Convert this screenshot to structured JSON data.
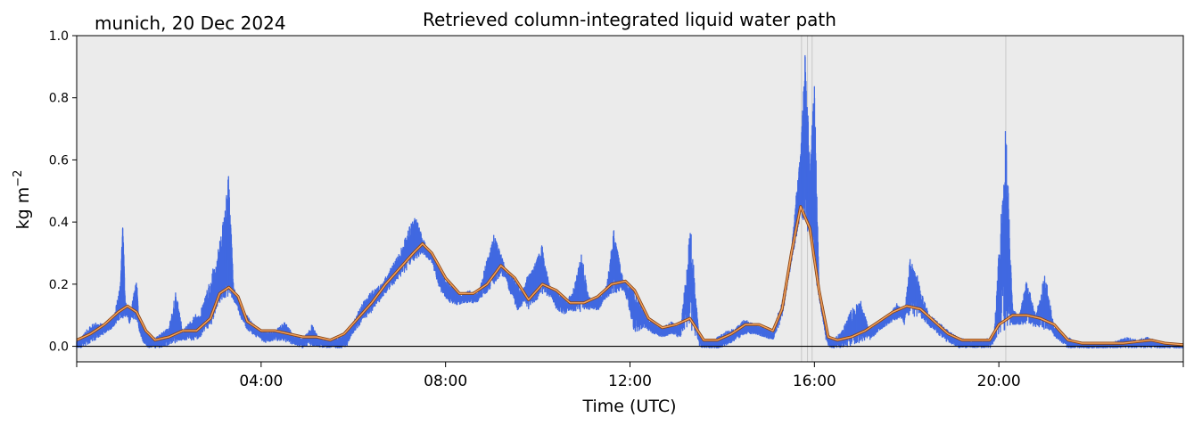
{
  "chart_data": {
    "type": "line",
    "title": "Retrieved column-integrated liquid water path",
    "subtitle": "munich, 20 Dec 2024",
    "xlabel": "Time (UTC)",
    "ylabel_base": "kg m",
    "ylabel_exp": "−2",
    "xlim": [
      0,
      24
    ],
    "ylim": [
      -0.05,
      1.0
    ],
    "xticks": [
      {
        "value": 0,
        "label": ""
      },
      {
        "value": 4,
        "label": "04:00"
      },
      {
        "value": 8,
        "label": "08:00"
      },
      {
        "value": 12,
        "label": "12:00"
      },
      {
        "value": 16,
        "label": "16:00"
      },
      {
        "value": 20,
        "label": "20:00"
      },
      {
        "value": 24,
        "label": ""
      }
    ],
    "yticks": [
      {
        "value": 0.0,
        "label": "0.0"
      },
      {
        "value": 0.2,
        "label": "0.2"
      },
      {
        "value": 0.4,
        "label": "0.4"
      },
      {
        "value": 0.6,
        "label": "0.6"
      },
      {
        "value": 0.8,
        "label": "0.8"
      },
      {
        "value": 1.0,
        "label": "1.0"
      }
    ],
    "zero_line": 0.0,
    "flag_lines_x": [
      15.72,
      15.85,
      15.95,
      20.15
    ],
    "colors": {
      "background": "#ebebeb",
      "points": "#4169e1",
      "smooth_outer": "#8b4513",
      "smooth_inner": "#f4a460",
      "flag_line": "#c8c8c8"
    },
    "series": [
      {
        "kind": "scatter",
        "x": [
          0.0,
          0.2,
          0.4,
          0.6,
          0.8,
          0.95,
          1.0,
          1.05,
          1.15,
          1.3,
          1.35,
          1.45,
          1.6,
          1.8,
          2.0,
          2.15,
          2.3,
          2.5,
          2.7,
          2.9,
          3.05,
          3.2,
          3.3,
          3.4,
          3.55,
          3.7,
          3.9,
          4.1,
          4.3,
          4.5,
          4.7,
          4.9,
          5.1,
          5.2,
          5.4,
          5.6,
          5.8,
          6.0,
          6.2,
          6.4,
          6.6,
          6.8,
          7.0,
          7.2,
          7.35,
          7.5,
          7.7,
          7.9,
          8.1,
          8.3,
          8.5,
          8.7,
          8.9,
          9.05,
          9.2,
          9.4,
          9.6,
          9.75,
          9.9,
          10.1,
          10.25,
          10.4,
          10.6,
          10.8,
          10.95,
          11.1,
          11.3,
          11.5,
          11.65,
          11.8,
          12.0,
          12.1,
          12.3,
          12.5,
          12.7,
          12.9,
          13.1,
          13.3,
          13.5,
          13.7,
          13.9,
          14.1,
          14.3,
          14.5,
          14.7,
          14.9,
          15.1,
          15.3,
          15.5,
          15.6,
          15.7,
          15.8,
          15.9,
          16.0,
          16.1,
          16.25,
          16.4,
          16.6,
          16.8,
          17.0,
          17.2,
          17.4,
          17.6,
          17.8,
          17.95,
          18.1,
          18.3,
          18.5,
          18.7,
          18.9,
          19.1,
          19.3,
          19.5,
          19.7,
          19.9,
          20.15,
          20.3,
          20.45,
          20.6,
          20.8,
          21.0,
          21.2,
          21.4,
          21.6,
          21.8,
          22.0,
          22.2,
          22.4,
          22.6,
          22.8,
          23.0,
          23.2,
          23.4,
          23.6,
          23.8,
          24.0
        ],
        "y": [
          0.01,
          0.05,
          0.08,
          0.07,
          0.09,
          0.2,
          0.42,
          0.15,
          0.1,
          0.22,
          0.08,
          0.04,
          0.02,
          0.04,
          0.06,
          0.18,
          0.05,
          0.09,
          0.12,
          0.22,
          0.3,
          0.42,
          0.56,
          0.2,
          0.12,
          0.1,
          0.06,
          0.04,
          0.05,
          0.08,
          0.04,
          0.02,
          0.07,
          0.04,
          0.02,
          0.02,
          0.01,
          0.08,
          0.14,
          0.18,
          0.2,
          0.25,
          0.3,
          0.38,
          0.42,
          0.35,
          0.3,
          0.2,
          0.17,
          0.16,
          0.18,
          0.17,
          0.28,
          0.36,
          0.3,
          0.2,
          0.13,
          0.22,
          0.25,
          0.33,
          0.2,
          0.15,
          0.13,
          0.2,
          0.3,
          0.16,
          0.14,
          0.2,
          0.38,
          0.25,
          0.14,
          0.07,
          0.09,
          0.07,
          0.06,
          0.08,
          0.05,
          0.42,
          0.03,
          0.01,
          0.03,
          0.05,
          0.06,
          0.09,
          0.07,
          0.06,
          0.05,
          0.15,
          0.3,
          0.48,
          0.62,
          0.97,
          0.6,
          0.85,
          0.2,
          0.05,
          0.02,
          0.05,
          0.12,
          0.15,
          0.05,
          0.08,
          0.1,
          0.14,
          0.1,
          0.32,
          0.18,
          0.1,
          0.08,
          0.05,
          0.03,
          0.02,
          0.02,
          0.02,
          0.04,
          0.72,
          0.12,
          0.1,
          0.22,
          0.1,
          0.24,
          0.06,
          0.04,
          0.02,
          0.01,
          0.01,
          0.01,
          0.01,
          0.02,
          0.03,
          0.02,
          0.03,
          0.02,
          0.01,
          0.01,
          0.005
        ]
      },
      {
        "kind": "smoothed-line",
        "x": [
          0.0,
          0.3,
          0.6,
          0.9,
          1.1,
          1.3,
          1.5,
          1.7,
          2.0,
          2.3,
          2.6,
          2.9,
          3.1,
          3.3,
          3.5,
          3.7,
          4.0,
          4.3,
          4.6,
          4.9,
          5.2,
          5.5,
          5.8,
          6.1,
          6.4,
          6.7,
          7.0,
          7.3,
          7.5,
          7.7,
          8.0,
          8.3,
          8.6,
          8.9,
          9.2,
          9.5,
          9.8,
          10.1,
          10.4,
          10.7,
          11.0,
          11.3,
          11.6,
          11.9,
          12.1,
          12.4,
          12.7,
          13.0,
          13.3,
          13.6,
          13.9,
          14.2,
          14.5,
          14.8,
          15.1,
          15.3,
          15.5,
          15.7,
          15.9,
          16.1,
          16.3,
          16.5,
          16.8,
          17.1,
          17.4,
          17.7,
          18.0,
          18.3,
          18.6,
          18.9,
          19.2,
          19.5,
          19.8,
          20.0,
          20.3,
          20.6,
          20.9,
          21.2,
          21.5,
          21.8,
          22.1,
          22.4,
          22.7,
          23.0,
          23.3,
          23.6,
          24.0
        ],
        "y": [
          0.02,
          0.04,
          0.07,
          0.11,
          0.13,
          0.11,
          0.05,
          0.02,
          0.03,
          0.05,
          0.05,
          0.09,
          0.17,
          0.19,
          0.16,
          0.08,
          0.05,
          0.05,
          0.04,
          0.03,
          0.03,
          0.02,
          0.04,
          0.09,
          0.14,
          0.2,
          0.25,
          0.3,
          0.33,
          0.3,
          0.22,
          0.17,
          0.17,
          0.2,
          0.26,
          0.22,
          0.15,
          0.2,
          0.18,
          0.14,
          0.14,
          0.16,
          0.2,
          0.21,
          0.18,
          0.09,
          0.06,
          0.07,
          0.09,
          0.02,
          0.02,
          0.04,
          0.07,
          0.07,
          0.05,
          0.12,
          0.3,
          0.45,
          0.38,
          0.18,
          0.03,
          0.02,
          0.03,
          0.05,
          0.08,
          0.11,
          0.13,
          0.12,
          0.08,
          0.04,
          0.02,
          0.02,
          0.02,
          0.07,
          0.1,
          0.1,
          0.09,
          0.07,
          0.02,
          0.01,
          0.01,
          0.01,
          0.01,
          0.015,
          0.02,
          0.01,
          0.005
        ]
      }
    ]
  }
}
